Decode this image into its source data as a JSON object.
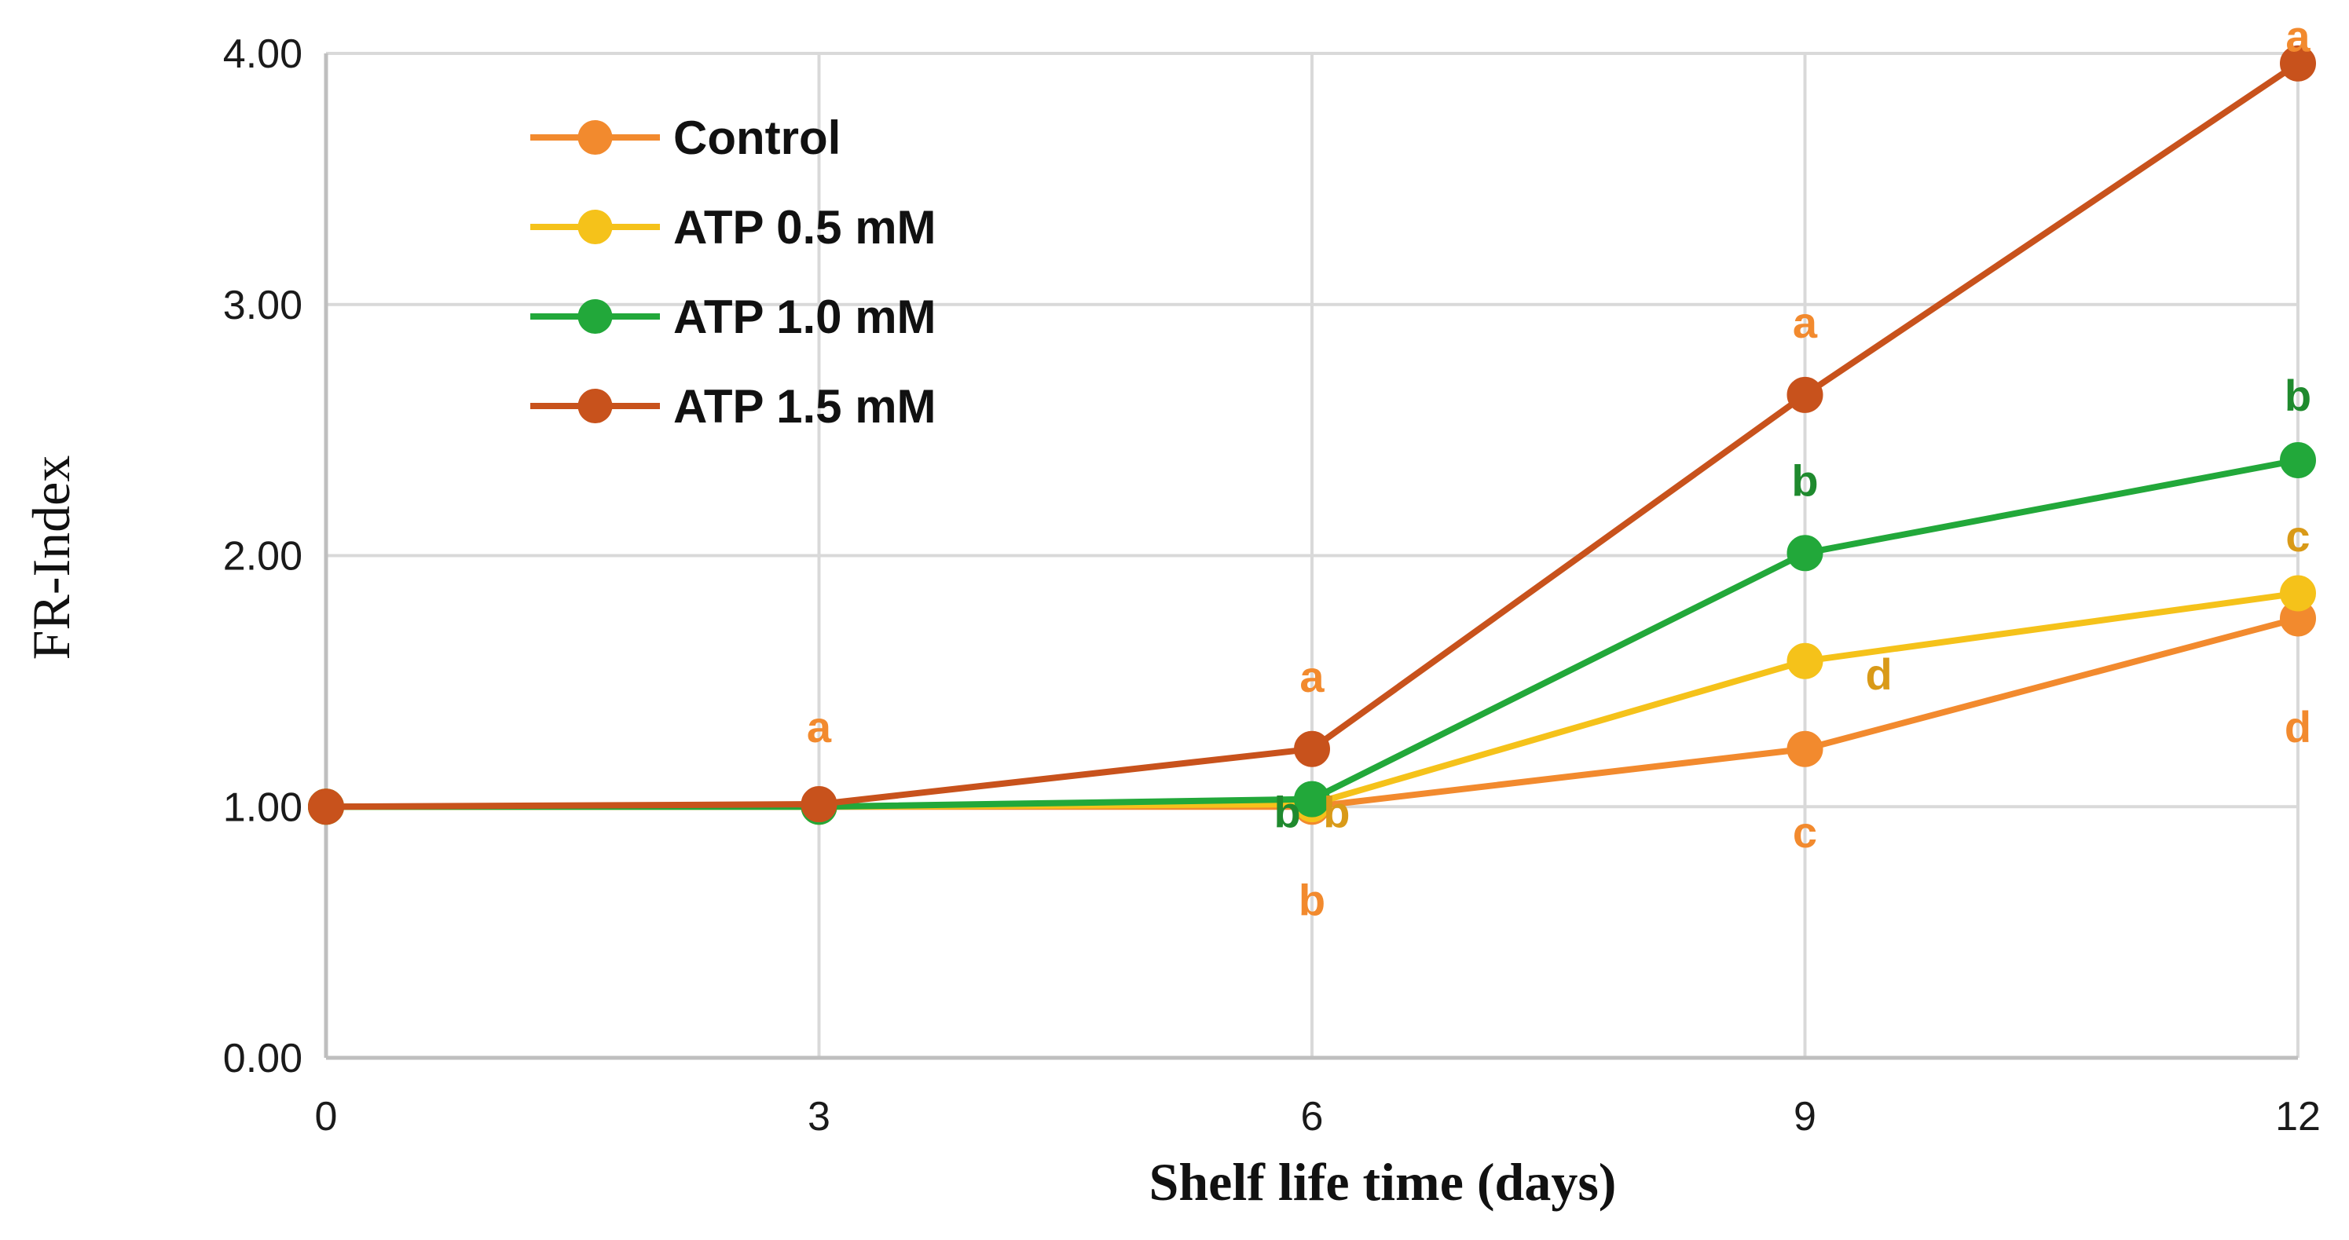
{
  "chart_data": {
    "type": "line",
    "title": "",
    "xlabel": "Shelf life time (days)",
    "ylabel": "FR-Index",
    "x": [
      0,
      3,
      6,
      9,
      12
    ],
    "xticks": [
      "0",
      "3",
      "6",
      "9",
      "12"
    ],
    "yticks": [
      "0.00",
      "1.00",
      "2.00",
      "3.00",
      "4.00"
    ],
    "xlim": [
      0,
      12
    ],
    "ylim": [
      0,
      4
    ],
    "grid": true,
    "legend_position": "top-left",
    "series": [
      {
        "name": "Control",
        "color": "#f28a2e",
        "values": [
          1.0,
          1.0,
          1.0,
          1.23,
          1.75
        ]
      },
      {
        "name": "ATP 0.5 mM",
        "color": "#f5c21a",
        "values": [
          1.0,
          1.0,
          1.01,
          1.58,
          1.85
        ]
      },
      {
        "name": "ATP 1.0 mM",
        "color": "#22a83a",
        "values": [
          1.0,
          1.0,
          1.03,
          2.01,
          2.38
        ]
      },
      {
        "name": "ATP 1.5 mM",
        "color": "#c8521c",
        "values": [
          1.0,
          1.01,
          1.23,
          2.64,
          3.96
        ]
      }
    ],
    "annotations": [
      {
        "text": "a",
        "x": 3,
        "y": 1.32,
        "color": "#f28a2e",
        "anchor": "middle"
      },
      {
        "text": "a",
        "x": 6,
        "y": 1.52,
        "color": "#f28a2e",
        "anchor": "middle"
      },
      {
        "text": "b",
        "x": 6,
        "y": 0.63,
        "color": "#f28a2e",
        "anchor": "middle"
      },
      {
        "text": "b",
        "x": 5.85,
        "y": 0.98,
        "color": "#1f8a2e",
        "anchor": "middle"
      },
      {
        "text": "b",
        "x": 6.15,
        "y": 0.98,
        "color": "#d99a18",
        "anchor": "middle"
      },
      {
        "text": "a",
        "x": 9,
        "y": 2.93,
        "color": "#f28a2e",
        "anchor": "middle"
      },
      {
        "text": "b",
        "x": 9,
        "y": 2.3,
        "color": "#1f8a2e",
        "anchor": "middle"
      },
      {
        "text": "d",
        "x": 9.45,
        "y": 1.53,
        "color": "#d99a18",
        "anchor": "middle"
      },
      {
        "text": "c",
        "x": 9,
        "y": 0.9,
        "color": "#f28a2e",
        "anchor": "middle"
      },
      {
        "text": "a",
        "x": 12,
        "y": 4.07,
        "color": "#f28a2e",
        "anchor": "middle"
      },
      {
        "text": "b",
        "x": 12,
        "y": 2.64,
        "color": "#1f8a2e",
        "anchor": "middle"
      },
      {
        "text": "c",
        "x": 12,
        "y": 2.08,
        "color": "#d99a18",
        "anchor": "middle"
      },
      {
        "text": "d",
        "x": 12,
        "y": 1.32,
        "color": "#f28a2e",
        "anchor": "middle"
      }
    ]
  }
}
